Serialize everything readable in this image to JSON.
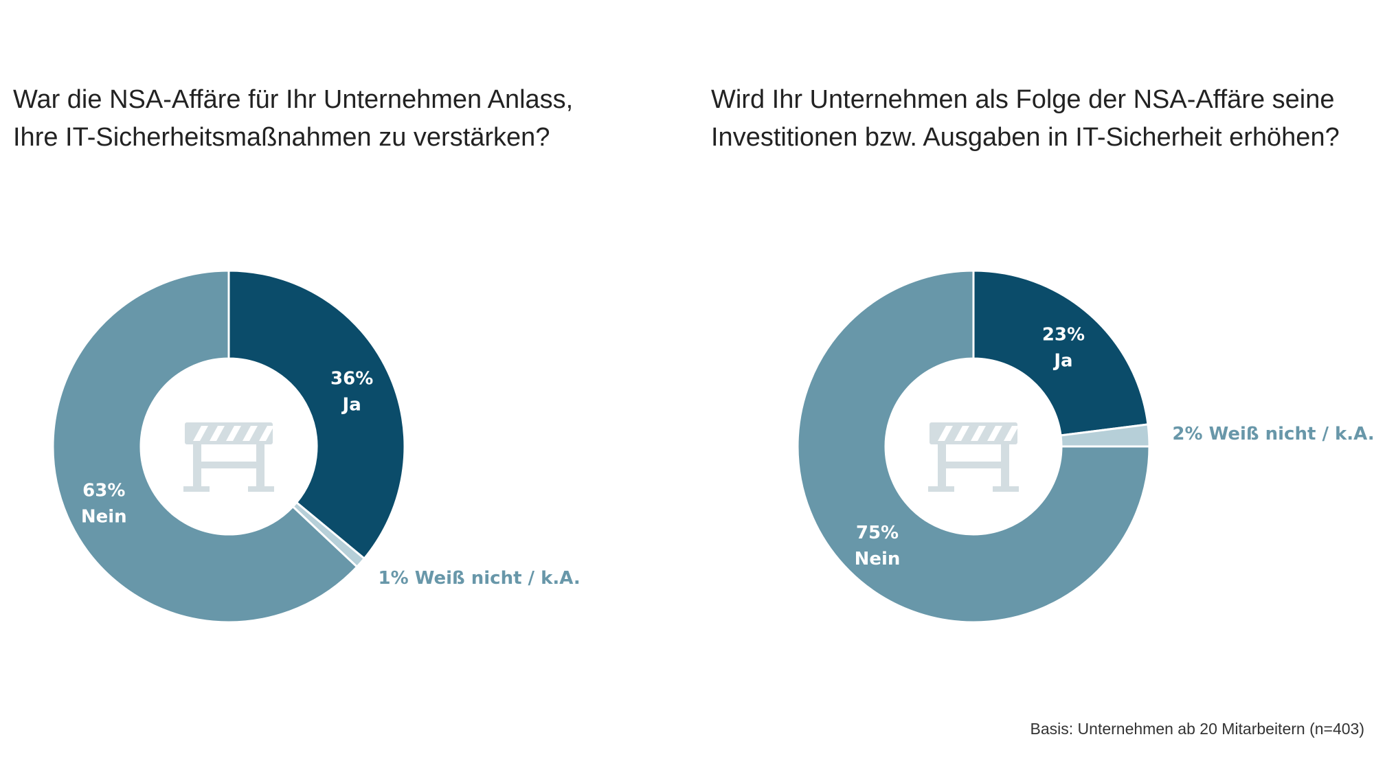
{
  "chart_data": [
    {
      "type": "donut",
      "title": "War die NSA-Affäre für Ihr Unternehmen Anlass, Ihre IT-Sicherheitsmaßnahmen zu verstärken?",
      "categories": [
        "Ja",
        "Weiß nicht / k.A.",
        "Nein"
      ],
      "values": [
        36,
        1,
        63
      ],
      "value_labels": [
        "36%",
        "1%",
        "63%"
      ],
      "colors": [
        "#0b4c6a",
        "#b6cfd8",
        "#6897a9"
      ]
    },
    {
      "type": "donut",
      "title": "Wird Ihr Unternehmen als Folge der NSA-Affäre seine Investitionen bzw. Ausgaben in IT-Sicherheit erhöhen?",
      "categories": [
        "Ja",
        "Weiß nicht / k.A.",
        "Nein"
      ],
      "values": [
        23,
        2,
        75
      ],
      "value_labels": [
        "23%",
        "2%",
        "75%"
      ],
      "colors": [
        "#0b4c6a",
        "#b6cfd8",
        "#6897a9"
      ]
    }
  ],
  "footnote": "Basis: Unternehmen ab 20 Mitarbeitern (n=403)"
}
